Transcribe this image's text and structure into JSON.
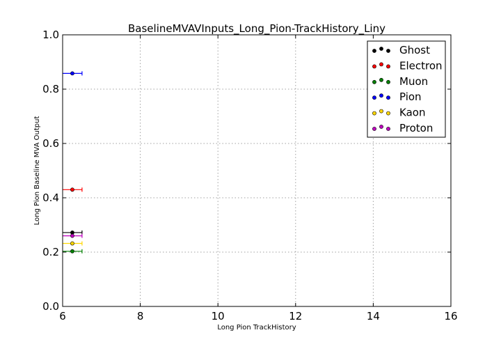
{
  "chart_data": {
    "type": "scatter",
    "title": "BaselineMVAVInputs_Long_Pion-TrackHistory_Liny",
    "xlabel": "Long Pion TrackHistory",
    "ylabel": "Long Pion Baseline MVA Output",
    "xlim": [
      6,
      16
    ],
    "ylim": [
      0.0,
      1.0
    ],
    "xticks": [
      "6",
      "8",
      "10",
      "12",
      "14",
      "16"
    ],
    "yticks": [
      "0.0",
      "0.2",
      "0.4",
      "0.6",
      "0.8",
      "1.0"
    ],
    "grid": true,
    "legend_position": "top-right",
    "series": [
      {
        "name": "Ghost",
        "color": "#000000",
        "x": [
          6.25
        ],
        "y": [
          0.272
        ],
        "xerr": [
          0.25
        ]
      },
      {
        "name": "Electron",
        "color": "#ff0000",
        "x": [
          6.25
        ],
        "y": [
          0.43
        ],
        "xerr": [
          0.25
        ]
      },
      {
        "name": "Muon",
        "color": "#008000",
        "x": [
          6.25
        ],
        "y": [
          0.203
        ],
        "xerr": [
          0.25
        ]
      },
      {
        "name": "Pion",
        "color": "#0000ff",
        "x": [
          6.25
        ],
        "y": [
          0.858
        ],
        "xerr": [
          0.25
        ]
      },
      {
        "name": "Kaon",
        "color": "#ffd700",
        "x": [
          6.25
        ],
        "y": [
          0.232
        ],
        "xerr": [
          0.25
        ]
      },
      {
        "name": "Proton",
        "color": "#bf00bf",
        "x": [
          6.25
        ],
        "y": [
          0.26
        ],
        "xerr": [
          0.25
        ]
      }
    ]
  }
}
